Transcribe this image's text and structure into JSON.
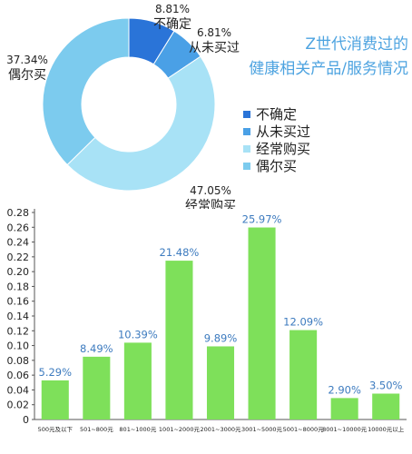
{
  "title_lines": [
    "Z世代消费过的",
    "健康相关产品/服务情况"
  ],
  "chart_data": [
    {
      "type": "pie",
      "variant": "donut",
      "slices": [
        {
          "label": "不确定",
          "value": 8.81,
          "value_label": "8.81%",
          "color": "#2a74d8"
        },
        {
          "label": "从未买过",
          "value": 6.81,
          "value_label": "6.81%",
          "color": "#4aa0e6"
        },
        {
          "label": "经常购买",
          "value": 47.05,
          "value_label": "47.05%",
          "color": "#a8e2f6"
        },
        {
          "label": "偶尔买",
          "value": 37.34,
          "value_label": "37.34%",
          "color": "#7ccbee"
        }
      ],
      "legend": [
        "不确定",
        "从未买过",
        "经常购买",
        "偶尔买"
      ],
      "legend_position": "right"
    },
    {
      "type": "bar",
      "categories": [
        "500元及以下",
        "501~800元",
        "801~1000元",
        "1001~2000元",
        "2001~3000元",
        "3001~5000元",
        "5001~8000元",
        "8001~10000元",
        "10000元以上"
      ],
      "values": [
        0.0529,
        0.0849,
        0.1039,
        0.2148,
        0.0989,
        0.2597,
        0.1209,
        0.029,
        0.035
      ],
      "value_labels": [
        "5.29%",
        "8.49%",
        "10.39%",
        "21.48%",
        "9.89%",
        "25.97%",
        "12.09%",
        "2.90%",
        "3.50%"
      ],
      "ylim": [
        0,
        0.28
      ],
      "yticks": [
        "0",
        "0.02",
        "0.04",
        "0.06",
        "0.08",
        "0.10",
        "0.12",
        "0.14",
        "0.16",
        "0.18",
        "0.20",
        "0.22",
        "0.24",
        "0.26",
        "0.28"
      ],
      "bar_color": "#7ee05a",
      "label_color": "#3d7bbf",
      "grid": false
    }
  ]
}
